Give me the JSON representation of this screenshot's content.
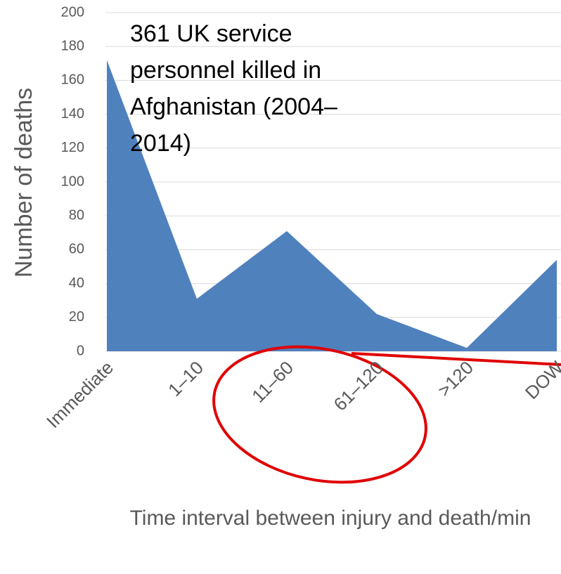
{
  "chart_data": {
    "type": "area",
    "title": "361 UK service personnel killed in Afghanistan (2004–2014)",
    "y_label": "Number of deaths",
    "x_label": "Time interval between injury and death/min",
    "categories": [
      "Immediate",
      "1–10",
      "11–60",
      "61–120",
      ">120",
      "DOW"
    ],
    "values": [
      172,
      31,
      71,
      22,
      2,
      54
    ],
    "color": "#4f81bd",
    "ylim": [
      0,
      200
    ],
    "yticks": [
      0,
      20,
      40,
      60,
      80,
      100,
      120,
      140,
      160,
      180,
      200
    ],
    "grid": true
  }
}
